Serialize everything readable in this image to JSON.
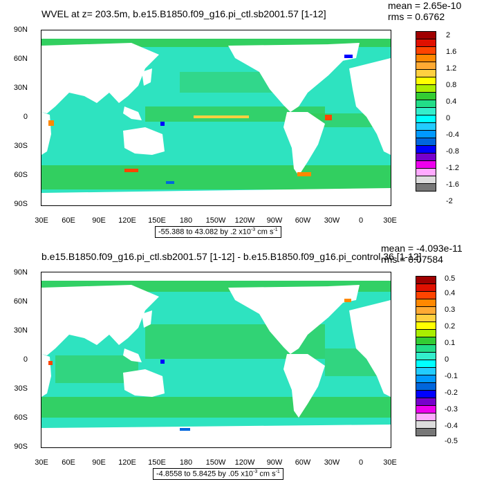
{
  "panels": [
    {
      "title": "WVEL at z= 203.5m, b.e15.B1850.f09_g16.pi_ctl.sb2001.57 [1-12]",
      "mean": "mean = 2.65e-10",
      "rms": "rms = 0.6762",
      "contour_prefix": "-55.388 to 43.082 by .2 x10",
      "contour_exp": "-3",
      "contour_unit": " cm s",
      "contour_unit_exp": "-1",
      "colorbar_labels": [
        "2",
        "1.6",
        "1.2",
        "0.8",
        "0.4",
        "0",
        "-0.4",
        "-0.8",
        "-1.2",
        "-1.6",
        "-2"
      ]
    },
    {
      "title": "b.e15.B1850.f09_g16.pi_ctl.sb2001.57 [1-12] - b.e15.B1850.f09_g16.pi_control.36 [1-12]",
      "mean": "mean = -4.093e-11",
      "rms": "rms = 0.07584",
      "contour_prefix": "-4.8558 to 5.8425 by .05 x10",
      "contour_exp": "-3",
      "contour_unit": " cm s",
      "contour_unit_exp": "-1",
      "colorbar_labels": [
        "0.5",
        "0.4",
        "0.3",
        "0.2",
        "0.1",
        "0",
        "-0.1",
        "-0.2",
        "-0.3",
        "-0.4",
        "-0.5"
      ]
    }
  ],
  "y_labels": [
    "90N",
    "60N",
    "30N",
    "0",
    "30S",
    "60S",
    "90S"
  ],
  "x_labels": [
    "30E",
    "60E",
    "90E",
    "120E",
    "150E",
    "180",
    "150W",
    "120W",
    "90W",
    "60W",
    "30W",
    "0",
    "30E"
  ],
  "colorbar_colors": [
    "#a00000",
    "#e01000",
    "#ff4400",
    "#ff8800",
    "#ffaa33",
    "#ffd040",
    "#ffff00",
    "#aaee00",
    "#33cc33",
    "#22dd88",
    "#33eecc",
    "#00ffff",
    "#22ccff",
    "#0099ff",
    "#0066dd",
    "#0000ff",
    "#7700cc",
    "#ee00ee",
    "#ffaaff",
    "#dddddd",
    "#777777"
  ],
  "ocean_color": "#2ee3c0",
  "ocean_green": "#33cc55",
  "land_color": "#ffffff"
}
